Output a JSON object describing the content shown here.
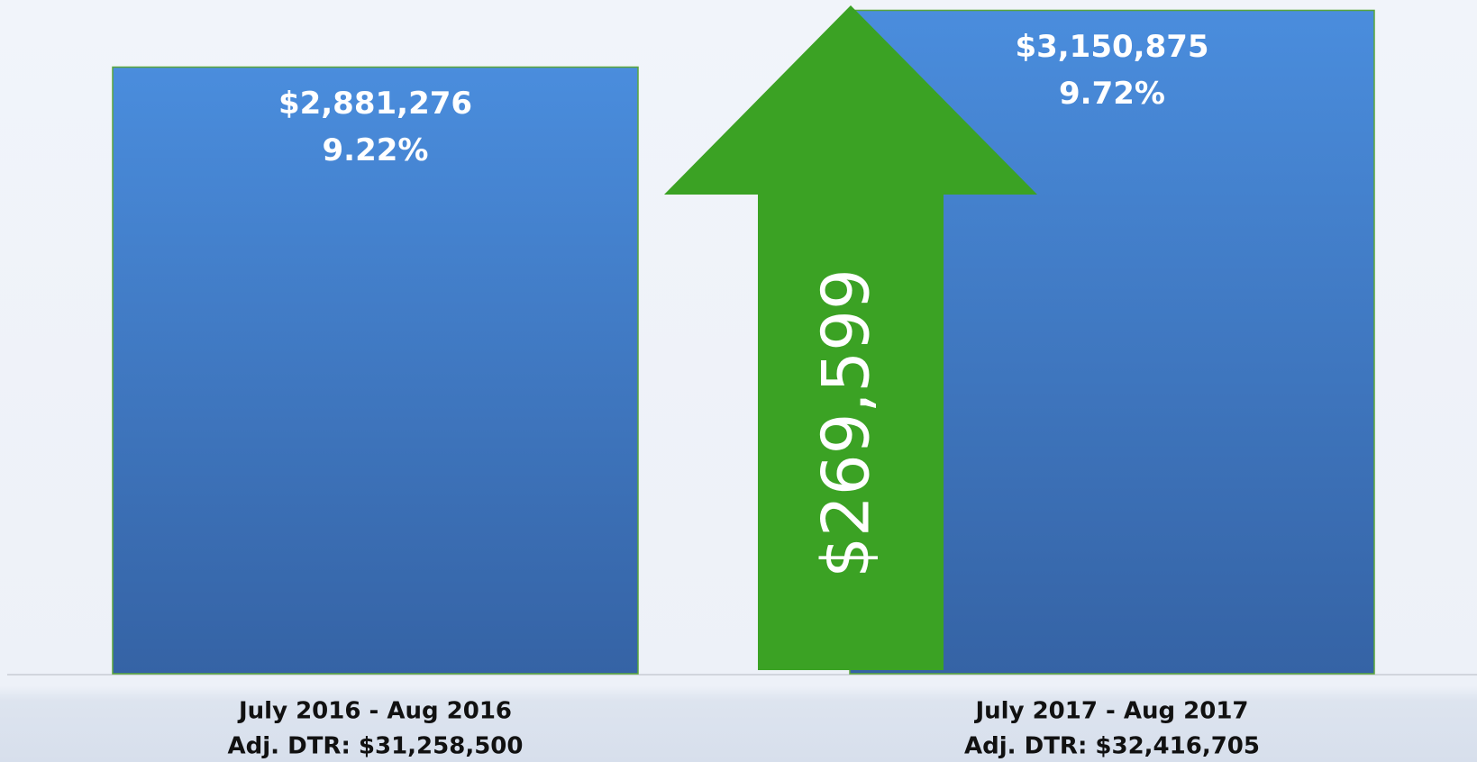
{
  "chart_data": {
    "type": "bar",
    "categories": [
      [
        "July 2016 - Aug 2016",
        "Adj. DTR: $31,258,500"
      ],
      [
        "July 2017 - Aug 2017",
        "Adj. DTR: $32,416,705"
      ]
    ],
    "values": [
      2881276,
      3150875
    ],
    "value_labels": [
      "$2,881,276",
      "$3,150,875"
    ],
    "percentages": [
      9.22,
      9.72
    ],
    "percent_labels": [
      "9.22%",
      "9.72%"
    ],
    "annotation": "$269,599",
    "color": "#4283d6",
    "ylim": [
      0,
      3200000
    ]
  }
}
